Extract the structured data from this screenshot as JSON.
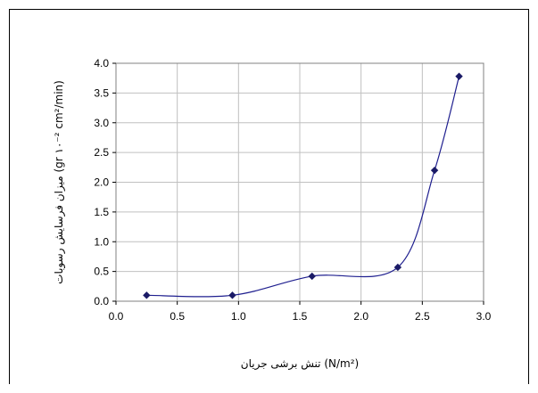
{
  "chart_data": {
    "type": "line",
    "title": "",
    "xlabel": "تنش برشی جریان (N/m²)",
    "ylabel": "میزان فرسایش رسوبات (gr ۱۰⁻² cm²/min)",
    "xlim": [
      0.0,
      3.0
    ],
    "ylim": [
      0.0,
      4.0
    ],
    "xticks": [
      "0.0",
      "0.5",
      "1.0",
      "1.5",
      "2.0",
      "2.5",
      "3.0"
    ],
    "yticks": [
      "0.0",
      "0.5",
      "1.0",
      "1.5",
      "2.0",
      "2.5",
      "3.0",
      "3.5",
      "4.0"
    ],
    "grid": true,
    "legend": "none",
    "colors": {
      "line": "#1f1f8f",
      "marker": "#1a1a66",
      "grid": "#c0c0c0"
    },
    "series": [
      {
        "x": [
          0.25,
          0.95,
          1.6,
          2.3,
          2.6,
          2.8
        ],
        "y": [
          0.1,
          0.1,
          0.42,
          0.57,
          2.2,
          3.78
        ]
      }
    ]
  }
}
